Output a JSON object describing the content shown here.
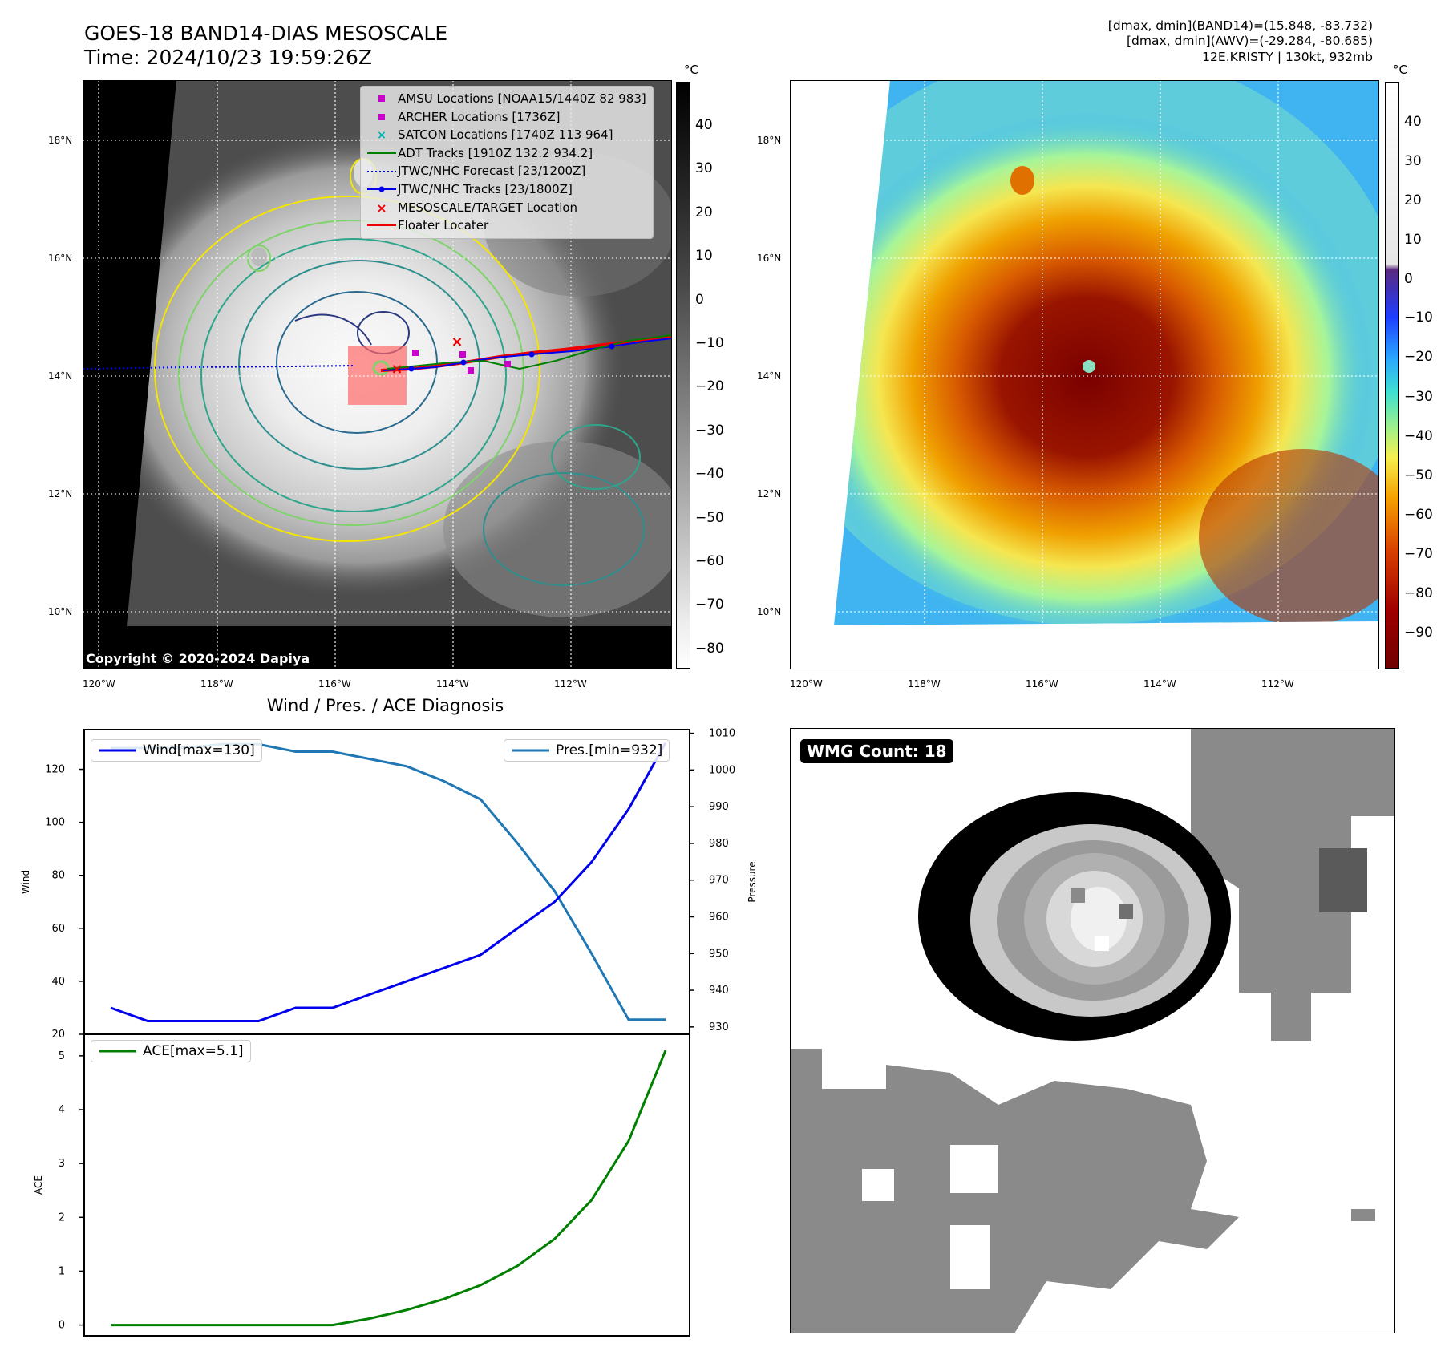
{
  "header": {
    "title_line1": "GOES-18 BAND14-DIAS MESOSCALE",
    "title_line2": "Time: 2024/10/23 19:59:26Z",
    "right_line1": "[dmax, dmin](BAND14)=(15.848, -83.732)",
    "right_line2": "[dmax, dmin](AWV)=(-29.284, -80.685)",
    "right_line3": "12E.KRISTY | 130kt, 932mb"
  },
  "map_axes": {
    "lon_labels": [
      "120°W",
      "118°W",
      "116°W",
      "114°W",
      "112°W"
    ],
    "lat_labels": [
      "18°N",
      "16°N",
      "14°N",
      "12°N",
      "10°N"
    ]
  },
  "colorbar_gray": {
    "unit": "°C",
    "ticks": [
      "40",
      "30",
      "20",
      "10",
      "0",
      "−10",
      "−20",
      "−30",
      "−40",
      "−50",
      "−60",
      "−70",
      "−80"
    ]
  },
  "colorbar_color": {
    "unit": "°C",
    "ticks": [
      "40",
      "30",
      "20",
      "10",
      "0",
      "−10",
      "−20",
      "−30",
      "−40",
      "−50",
      "−60",
      "−70",
      "−80",
      "−90"
    ]
  },
  "legend": {
    "amsu": "AMSU Locations [NOAA15/1440Z 82 983]",
    "archer": "ARCHER Locations [1736Z]",
    "satcon": "SATCON Locations [1740Z 113 964]",
    "adt": "ADT Tracks [1910Z 132.2 934.2]",
    "forecast": "JTWC/NHC Forecast [23/1200Z]",
    "tracks": "JTWC/NHC Tracks [23/1800Z]",
    "target": "MESOSCALE/TARGET Location",
    "floater": "Floater Locater"
  },
  "copyright": "Copyright © 2020-2024 Dapiya",
  "wmg_label": "WMG Count: 18",
  "colors": {
    "wind": "#0000ee",
    "pressure": "#1f77b4",
    "ace": "#008000",
    "amsu": "#cc00cc",
    "satcon": "#00b3b3",
    "target": "#ee0000"
  },
  "chart_data": [
    {
      "type": "line",
      "title": "Wind / Pres. / ACE Diagnosis",
      "ylabel": "Wind",
      "ylabel_right": "Pressure",
      "ylim": [
        20,
        135
      ],
      "ylim_right": [
        928,
        1011
      ],
      "y_ticks": [
        20,
        40,
        60,
        80,
        100,
        120
      ],
      "y_ticks_right": [
        930,
        940,
        950,
        960,
        970,
        980,
        990,
        1000,
        1010
      ],
      "series": [
        {
          "name": "Wind[max=130]",
          "axis": "left",
          "values": [
            30,
            25,
            25,
            25,
            25,
            30,
            30,
            35,
            40,
            45,
            50,
            60,
            70,
            85,
            105,
            130
          ]
        },
        {
          "name": "Pres.[min=932]",
          "axis": "right",
          "values": [
            1006,
            1006,
            1006,
            1007,
            1007,
            1005,
            1005,
            1003,
            1001,
            997,
            992,
            980,
            967,
            950,
            932,
            932
          ]
        }
      ]
    },
    {
      "type": "line",
      "ylabel": "ACE",
      "ylim": [
        -0.2,
        5.4
      ],
      "y_ticks": [
        0,
        1,
        2,
        3,
        4,
        5
      ],
      "series": [
        {
          "name": "ACE[max=5.1]",
          "values": [
            0,
            0,
            0,
            0,
            0,
            0,
            0,
            0.12,
            0.28,
            0.48,
            0.74,
            1.1,
            1.6,
            2.32,
            3.42,
            5.1
          ]
        }
      ]
    }
  ]
}
